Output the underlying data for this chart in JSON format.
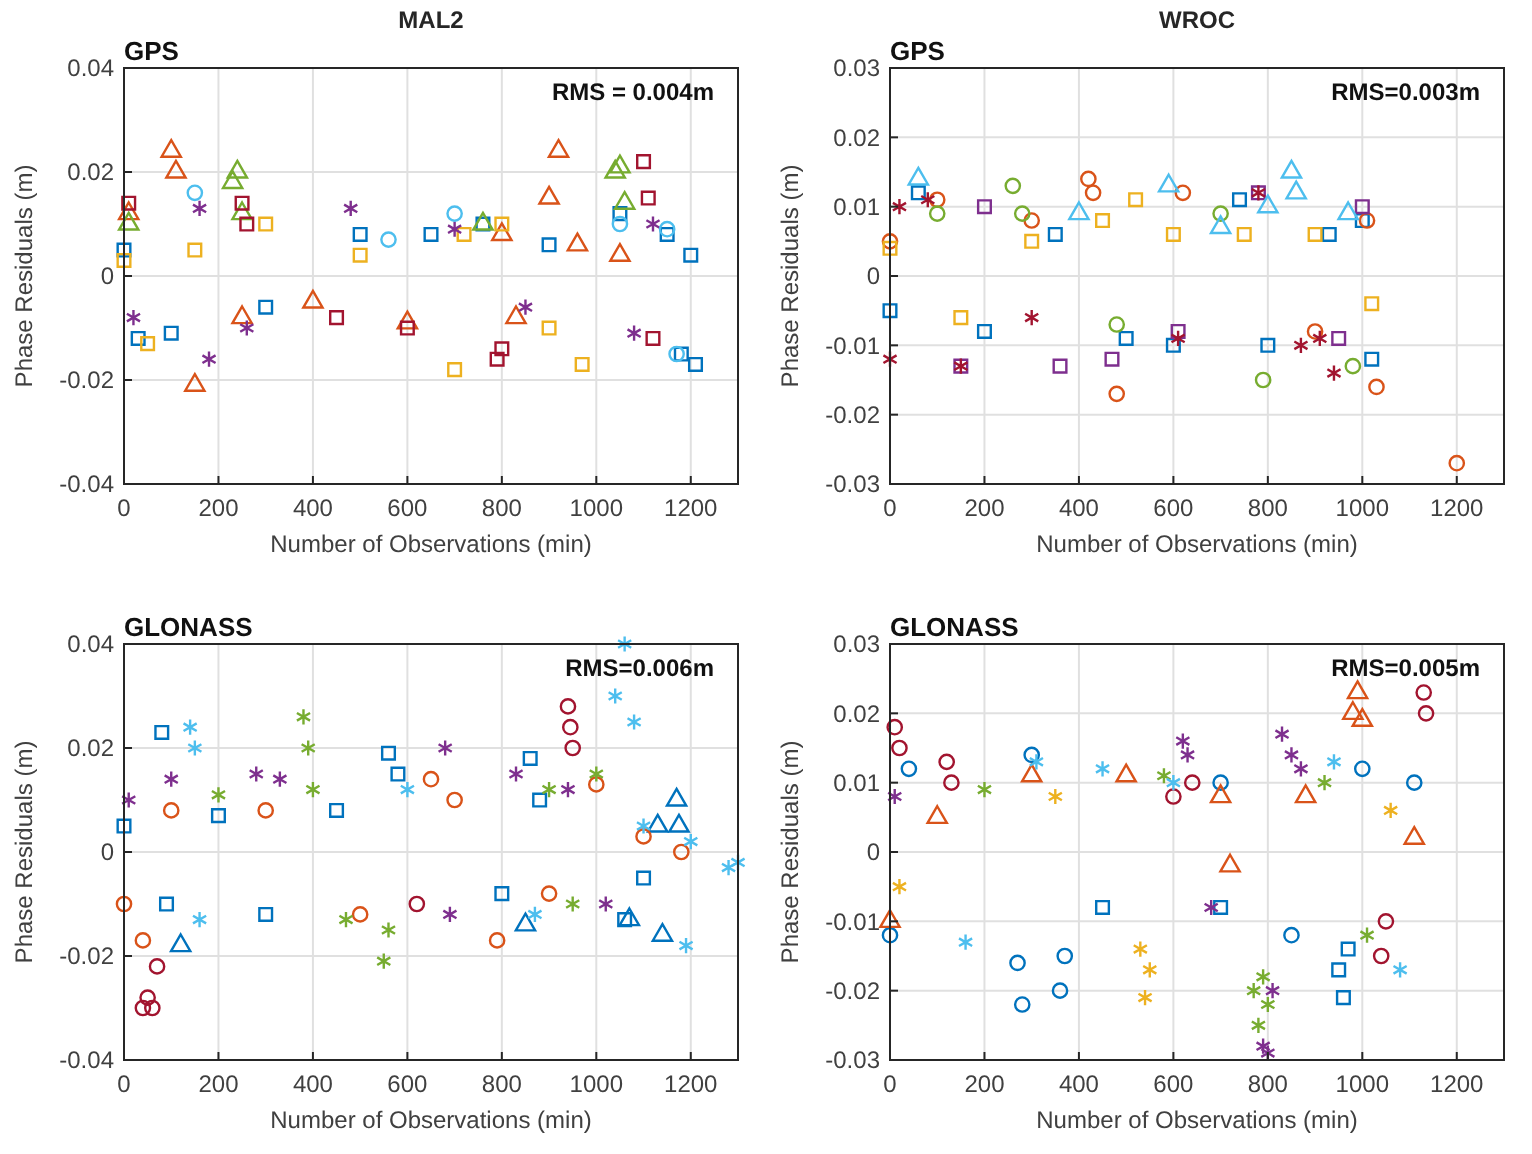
{
  "chart_data": [
    {
      "type": "scatter",
      "title": "MAL2",
      "subtitle": "GPS",
      "xlabel": "Number of Observations (min)",
      "ylabel": "Phase Residuals (m)",
      "annotations": [
        "RMS = 0.004m"
      ],
      "xlim": [
        0,
        1300
      ],
      "xticks": [
        0,
        200,
        400,
        600,
        800,
        1000,
        1200
      ],
      "ylim": [
        -0.04,
        0.04
      ],
      "yticks": [
        -0.04,
        -0.02,
        0,
        0.02,
        0.04
      ],
      "grid": true,
      "series": [
        {
          "color": "#0072bd",
          "marker": "square",
          "x": [
            0,
            30,
            100,
            300,
            500,
            650,
            760,
            900,
            1050,
            1150,
            1180,
            1200,
            1210
          ],
          "values": [
            0.005,
            -0.012,
            -0.011,
            -0.006,
            0.008,
            0.008,
            0.01,
            0.006,
            0.012,
            0.008,
            -0.015,
            0.004,
            -0.017
          ]
        },
        {
          "color": "#d95319",
          "marker": "triangle",
          "x": [
            10,
            100,
            110,
            150,
            250,
            400,
            600,
            800,
            830,
            900,
            920,
            960,
            1050
          ],
          "values": [
            0.012,
            0.024,
            0.02,
            -0.021,
            -0.008,
            -0.005,
            -0.009,
            0.008,
            -0.008,
            0.015,
            0.024,
            0.006,
            0.004
          ]
        },
        {
          "color": "#edb120",
          "marker": "square",
          "x": [
            0,
            50,
            150,
            300,
            500,
            700,
            720,
            800,
            900,
            970
          ],
          "values": [
            0.003,
            -0.013,
            0.005,
            0.01,
            0.004,
            -0.018,
            0.008,
            0.01,
            -0.01,
            -0.017
          ]
        },
        {
          "color": "#7e2f8e",
          "marker": "cross",
          "x": [
            20,
            160,
            180,
            260,
            480,
            700,
            850,
            1080,
            1120
          ],
          "values": [
            -0.008,
            0.013,
            -0.016,
            -0.01,
            0.013,
            0.009,
            -0.006,
            -0.011,
            0.01
          ]
        },
        {
          "color": "#77ac30",
          "marker": "triangle",
          "x": [
            10,
            230,
            240,
            250,
            760,
            1040,
            1050,
            1060
          ],
          "values": [
            0.01,
            0.018,
            0.02,
            0.012,
            0.01,
            0.02,
            0.021,
            0.014
          ]
        },
        {
          "color": "#4dbeee",
          "marker": "circle",
          "x": [
            150,
            560,
            700,
            1050,
            1150,
            1170
          ],
          "values": [
            0.016,
            0.007,
            0.012,
            0.01,
            0.009,
            -0.015
          ]
        },
        {
          "color": "#a2142f",
          "marker": "square",
          "x": [
            10,
            250,
            260,
            450,
            600,
            790,
            800,
            1100,
            1110,
            1120
          ],
          "values": [
            0.014,
            0.014,
            0.01,
            -0.008,
            -0.01,
            -0.016,
            -0.014,
            0.022,
            0.015,
            -0.012
          ]
        }
      ]
    },
    {
      "type": "scatter",
      "title": "WROC",
      "subtitle": "GPS",
      "xlabel": "Number of Observations (min)",
      "ylabel": "Phase Residuals (m)",
      "annotations": [
        "RMS=0.003m"
      ],
      "xlim": [
        0,
        1300
      ],
      "xticks": [
        0,
        200,
        400,
        600,
        800,
        1000,
        1200
      ],
      "ylim": [
        -0.03,
        0.03
      ],
      "yticks": [
        -0.03,
        -0.02,
        -0.01,
        0,
        0.01,
        0.02,
        0.03
      ],
      "grid": true,
      "series": [
        {
          "color": "#0072bd",
          "marker": "square",
          "x": [
            0,
            60,
            200,
            350,
            500,
            600,
            740,
            800,
            930,
            1000,
            1020
          ],
          "values": [
            -0.005,
            0.012,
            -0.008,
            0.006,
            -0.009,
            -0.01,
            0.011,
            -0.01,
            0.006,
            0.008,
            -0.012
          ]
        },
        {
          "color": "#d95319",
          "marker": "circle",
          "x": [
            0,
            100,
            300,
            420,
            430,
            480,
            620,
            900,
            1010,
            1030,
            1200
          ],
          "values": [
            0.005,
            0.011,
            0.008,
            0.014,
            0.012,
            -0.017,
            0.012,
            -0.008,
            0.008,
            -0.016,
            -0.027
          ]
        },
        {
          "color": "#edb120",
          "marker": "square",
          "x": [
            0,
            150,
            300,
            450,
            520,
            600,
            750,
            900,
            1020
          ],
          "values": [
            0.004,
            -0.006,
            0.005,
            0.008,
            0.011,
            0.006,
            0.006,
            0.006,
            -0.004
          ]
        },
        {
          "color": "#7e2f8e",
          "marker": "square",
          "x": [
            150,
            200,
            360,
            470,
            610,
            780,
            950,
            1000
          ],
          "values": [
            -0.013,
            0.01,
            -0.013,
            -0.012,
            -0.008,
            0.012,
            -0.009,
            0.01
          ]
        },
        {
          "color": "#77ac30",
          "marker": "circle",
          "x": [
            100,
            260,
            280,
            480,
            700,
            790,
            980
          ],
          "values": [
            0.009,
            0.013,
            0.009,
            -0.007,
            0.009,
            -0.015,
            -0.013
          ]
        },
        {
          "color": "#4dbeee",
          "marker": "triangle",
          "x": [
            60,
            400,
            590,
            700,
            800,
            850,
            860,
            970
          ],
          "values": [
            0.014,
            0.009,
            0.013,
            0.007,
            0.01,
            0.015,
            0.012,
            0.009
          ]
        },
        {
          "color": "#a2142f",
          "marker": "cross",
          "x": [
            0,
            20,
            80,
            150,
            300,
            610,
            780,
            870,
            910,
            940
          ],
          "values": [
            -0.012,
            0.01,
            0.011,
            -0.013,
            -0.006,
            -0.009,
            0.012,
            -0.01,
            -0.009,
            -0.014
          ]
        }
      ]
    },
    {
      "type": "scatter",
      "subtitle": "GLONASS",
      "xlabel": "Number of Observations (min)",
      "ylabel": "Phase Residuals (m)",
      "annotations": [
        "RMS=0.006m"
      ],
      "xlim": [
        0,
        1300
      ],
      "xticks": [
        0,
        200,
        400,
        600,
        800,
        1000,
        1200
      ],
      "ylim": [
        -0.04,
        0.04
      ],
      "yticks": [
        -0.04,
        -0.02,
        0,
        0.02,
        0.04
      ],
      "grid": true,
      "series": [
        {
          "color": "#0072bd",
          "marker": "square",
          "x": [
            0,
            80,
            90,
            200,
            300,
            450,
            560,
            580,
            800,
            860,
            880,
            1060,
            1100
          ],
          "values": [
            0.005,
            0.023,
            -0.01,
            0.007,
            -0.012,
            0.008,
            0.019,
            0.015,
            -0.008,
            0.018,
            0.01,
            -0.013,
            -0.005
          ]
        },
        {
          "color": "#0072bd",
          "marker": "triangle",
          "x": [
            120,
            850,
            1070,
            1130,
            1140,
            1170,
            1175
          ],
          "values": [
            -0.018,
            -0.014,
            -0.013,
            0.005,
            -0.016,
            0.01,
            0.005
          ]
        },
        {
          "color": "#d95319",
          "marker": "circle",
          "x": [
            0,
            40,
            100,
            300,
            500,
            650,
            700,
            790,
            900,
            1000,
            1100,
            1180
          ],
          "values": [
            -0.01,
            -0.017,
            0.008,
            0.008,
            -0.012,
            0.014,
            0.01,
            -0.017,
            -0.008,
            0.013,
            0.003,
            0
          ]
        },
        {
          "color": "#77ac30",
          "marker": "cross",
          "x": [
            200,
            380,
            390,
            400,
            470,
            550,
            560,
            900,
            950,
            1000
          ],
          "values": [
            0.011,
            0.026,
            0.02,
            0.012,
            -0.013,
            -0.021,
            -0.015,
            0.012,
            -0.01,
            0.015
          ]
        },
        {
          "color": "#7e2f8e",
          "marker": "cross",
          "x": [
            10,
            100,
            280,
            330,
            680,
            690,
            830,
            940,
            1020
          ],
          "values": [
            0.01,
            0.014,
            0.015,
            0.014,
            0.02,
            -0.012,
            0.015,
            0.012,
            -0.01
          ]
        },
        {
          "color": "#a2142f",
          "marker": "circle",
          "x": [
            40,
            50,
            60,
            70,
            620,
            940,
            945,
            950
          ],
          "values": [
            -0.03,
            -0.028,
            -0.03,
            -0.022,
            -0.01,
            0.028,
            0.024,
            0.02
          ]
        },
        {
          "color": "#4dbeee",
          "marker": "cross",
          "x": [
            140,
            150,
            160,
            600,
            870,
            1040,
            1060,
            1080,
            1100,
            1190,
            1200,
            1280,
            1300
          ],
          "values": [
            0.024,
            0.02,
            -0.013,
            0.012,
            -0.012,
            0.03,
            0.04,
            0.025,
            0.005,
            -0.018,
            0.002,
            -0.003,
            -0.002
          ]
        }
      ]
    },
    {
      "type": "scatter",
      "subtitle": "GLONASS",
      "xlabel": "Number of Observations (min)",
      "ylabel": "Phase Residuals (m)",
      "annotations": [
        "RMS=0.005m"
      ],
      "xlim": [
        0,
        1300
      ],
      "xticks": [
        0,
        200,
        400,
        600,
        800,
        1000,
        1200
      ],
      "ylim": [
        -0.03,
        0.03
      ],
      "yticks": [
        -0.03,
        -0.02,
        -0.01,
        0,
        0.01,
        0.02,
        0.03
      ],
      "grid": true,
      "series": [
        {
          "color": "#0072bd",
          "marker": "circle",
          "x": [
            0,
            40,
            270,
            280,
            300,
            360,
            370,
            700,
            850,
            1000,
            1110
          ],
          "values": [
            -0.012,
            0.012,
            -0.016,
            -0.022,
            0.014,
            -0.02,
            -0.015,
            0.01,
            -0.012,
            0.012,
            0.01
          ]
        },
        {
          "color": "#0072bd",
          "marker": "square",
          "x": [
            450,
            700,
            950,
            960,
            970
          ],
          "values": [
            -0.008,
            -0.008,
            -0.017,
            -0.021,
            -0.014
          ]
        },
        {
          "color": "#d95319",
          "marker": "triangle",
          "x": [
            0,
            100,
            300,
            500,
            700,
            720,
            880,
            980,
            990,
            1000,
            1110
          ],
          "values": [
            -0.01,
            0.005,
            0.011,
            0.011,
            0.008,
            -0.002,
            0.008,
            0.02,
            0.023,
            0.019,
            0.002
          ]
        },
        {
          "color": "#a2142f",
          "marker": "circle",
          "x": [
            10,
            20,
            120,
            130,
            600,
            640,
            1040,
            1050,
            1130,
            1135
          ],
          "values": [
            0.018,
            0.015,
            0.013,
            0.01,
            0.008,
            0.01,
            -0.015,
            -0.01,
            0.023,
            0.02
          ]
        },
        {
          "color": "#edb120",
          "marker": "cross",
          "x": [
            20,
            350,
            530,
            540,
            550,
            1060
          ],
          "values": [
            -0.005,
            0.008,
            -0.014,
            -0.021,
            -0.017,
            0.006
          ]
        },
        {
          "color": "#7e2f8e",
          "marker": "cross",
          "x": [
            10,
            620,
            630,
            680,
            790,
            800,
            810,
            830,
            850,
            870
          ],
          "values": [
            0.008,
            0.016,
            0.014,
            -0.008,
            -0.028,
            -0.029,
            -0.02,
            0.017,
            0.014,
            0.012
          ]
        },
        {
          "color": "#77ac30",
          "marker": "cross",
          "x": [
            200,
            580,
            770,
            780,
            790,
            800,
            920,
            1010
          ],
          "values": [
            0.009,
            0.011,
            -0.02,
            -0.025,
            -0.018,
            -0.022,
            0.01,
            -0.012
          ]
        },
        {
          "color": "#4dbeee",
          "marker": "cross",
          "x": [
            160,
            310,
            450,
            600,
            940,
            1080
          ],
          "values": [
            -0.013,
            0.013,
            0.012,
            0.01,
            0.013,
            -0.017
          ]
        }
      ]
    }
  ]
}
